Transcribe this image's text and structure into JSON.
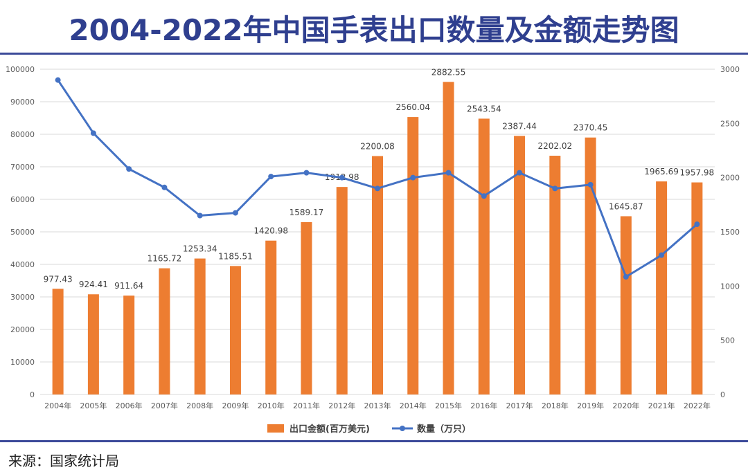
{
  "title": "2004-2022年中国手表出口数量及金额走势图",
  "source": "来源：国家统计局",
  "colors": {
    "bar": "#ed7d31",
    "line": "#4472c4",
    "accent": "#2f3f8f"
  },
  "chart_data": {
    "type": "bar+line",
    "title": "2004-2022年中国手表出口数量及金额走势图",
    "categories": [
      "2004年",
      "2005年",
      "2006年",
      "2007年",
      "2008年",
      "2009年",
      "2010年",
      "2011年",
      "2012年",
      "2013年",
      "2014年",
      "2015年",
      "2016年",
      "2017年",
      "2018年",
      "2019年",
      "2020年",
      "2021年",
      "2022年"
    ],
    "series": [
      {
        "name": "出口金额(百万美元)",
        "type": "bar",
        "axis": "left",
        "values": [
          32500,
          30800,
          30400,
          38800,
          41800,
          39500,
          47300,
          53000,
          63800,
          73300,
          85300,
          96100,
          84800,
          79500,
          73400,
          79000,
          54800,
          65500,
          65200
        ],
        "labels": [
          "977.43",
          "924.41",
          "911.64",
          "1165.72",
          "1253.34",
          "1185.51",
          "1420.98",
          "1589.17",
          "1912.98",
          "2200.08",
          "2560.04",
          "2882.55",
          "2543.54",
          "2387.44",
          "2202.02",
          "2370.45",
          "1645.87",
          "1965.69",
          "1957.98"
        ]
      },
      {
        "name": "数量（万只）",
        "type": "line",
        "axis": "right",
        "values": [
          2900,
          2410,
          2080,
          1910,
          1650,
          1675,
          2010,
          2045,
          2000,
          1900,
          2000,
          2045,
          1830,
          2045,
          1900,
          1935,
          1085,
          1285,
          1570
        ]
      }
    ],
    "y_left": {
      "min": 0,
      "max": 100000,
      "ticks": [
        0,
        10000,
        20000,
        30000,
        40000,
        50000,
        60000,
        70000,
        80000,
        90000,
        100000
      ]
    },
    "y_right": {
      "min": 0,
      "max": 3000,
      "ticks": [
        0,
        500,
        1000,
        1500,
        2000,
        2500,
        3000
      ]
    },
    "legend": [
      "出口金额(百万美元)",
      "数量（万只）"
    ],
    "legend_position": "bottom",
    "grid": true
  }
}
